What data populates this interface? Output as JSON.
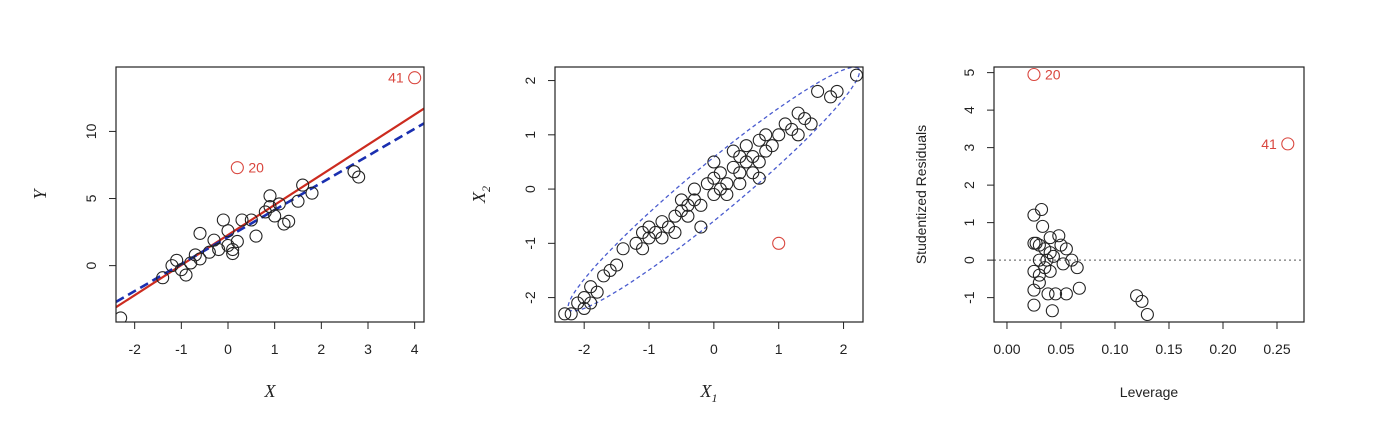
{
  "chart_data": [
    {
      "type": "scatter",
      "xlabel": "X",
      "ylabel": "Y",
      "xlim": [
        -2.4,
        4.2
      ],
      "ylim": [
        -4.2,
        14.8
      ],
      "xticks": [
        -2,
        -1,
        0,
        1,
        2,
        3,
        4
      ],
      "yticks": [
        0,
        5,
        10
      ],
      "points": [
        [
          -2.3,
          -3.9
        ],
        [
          -1.4,
          -0.9
        ],
        [
          -1.2,
          0.0
        ],
        [
          -1.1,
          0.4
        ],
        [
          -1.0,
          -0.3
        ],
        [
          -0.9,
          -0.7
        ],
        [
          -0.8,
          0.2
        ],
        [
          -0.7,
          0.8
        ],
        [
          -0.6,
          0.5
        ],
        [
          -0.6,
          2.4
        ],
        [
          -0.4,
          1.0
        ],
        [
          -0.3,
          1.9
        ],
        [
          -0.2,
          1.2
        ],
        [
          -0.1,
          3.4
        ],
        [
          0.0,
          2.6
        ],
        [
          0.0,
          1.5
        ],
        [
          0.1,
          1.2
        ],
        [
          0.1,
          0.9
        ],
        [
          0.2,
          1.8
        ],
        [
          0.3,
          3.4
        ],
        [
          0.5,
          3.4
        ],
        [
          0.6,
          2.2
        ],
        [
          0.8,
          4.0
        ],
        [
          0.9,
          5.2
        ],
        [
          0.9,
          4.4
        ],
        [
          1.0,
          3.7
        ],
        [
          1.1,
          4.6
        ],
        [
          1.2,
          3.1
        ],
        [
          1.3,
          3.3
        ],
        [
          1.5,
          4.8
        ],
        [
          1.6,
          6.0
        ],
        [
          1.8,
          5.4
        ],
        [
          2.7,
          7.0
        ],
        [
          2.8,
          6.6
        ]
      ],
      "outliers": [
        {
          "x": 0.2,
          "y": 7.3,
          "label": "20"
        },
        {
          "x": 4.0,
          "y": 14.0,
          "label": "41"
        }
      ],
      "lines": [
        {
          "type": "solid",
          "color": "#cc2b1f",
          "x": [
            -2.4,
            4.2
          ],
          "y": [
            -3.1,
            11.7
          ]
        },
        {
          "type": "dashed",
          "color": "#1a2fb0",
          "x": [
            -2.4,
            4.2
          ],
          "y": [
            -2.7,
            10.6
          ]
        }
      ]
    },
    {
      "type": "scatter",
      "xlabel": "X",
      "xlabel_sub": "1",
      "ylabel": "X",
      "ylabel_sub": "2",
      "xlim": [
        -2.45,
        2.3
      ],
      "ylim": [
        -2.45,
        2.25
      ],
      "xticks": [
        -2,
        -1,
        0,
        1,
        2
      ],
      "yticks": [
        -2,
        -1,
        0,
        1,
        2
      ],
      "points": [
        [
          -2.3,
          -2.3
        ],
        [
          -2.2,
          -2.3
        ],
        [
          -2.1,
          -2.1
        ],
        [
          -2.0,
          -2.2
        ],
        [
          -2.0,
          -2.0
        ],
        [
          -1.9,
          -2.1
        ],
        [
          -1.9,
          -1.8
        ],
        [
          -1.8,
          -1.9
        ],
        [
          -1.7,
          -1.6
        ],
        [
          -1.6,
          -1.5
        ],
        [
          -1.5,
          -1.4
        ],
        [
          -1.4,
          -1.1
        ],
        [
          -1.2,
          -1.0
        ],
        [
          -1.1,
          -0.8
        ],
        [
          -1.1,
          -1.1
        ],
        [
          -1.0,
          -0.9
        ],
        [
          -1.0,
          -0.7
        ],
        [
          -0.9,
          -0.8
        ],
        [
          -0.8,
          -0.9
        ],
        [
          -0.8,
          -0.6
        ],
        [
          -0.7,
          -0.7
        ],
        [
          -0.6,
          -0.8
        ],
        [
          -0.6,
          -0.5
        ],
        [
          -0.5,
          -0.4
        ],
        [
          -0.5,
          -0.2
        ],
        [
          -0.4,
          -0.5
        ],
        [
          -0.3,
          -0.2
        ],
        [
          -0.3,
          0.0
        ],
        [
          -0.2,
          -0.3
        ],
        [
          -0.2,
          -0.7
        ],
        [
          -0.1,
          0.1
        ],
        [
          0.0,
          0.2
        ],
        [
          0.0,
          -0.1
        ],
        [
          0.1,
          0.0
        ],
        [
          0.1,
          0.3
        ],
        [
          0.2,
          0.1
        ],
        [
          0.2,
          -0.1
        ],
        [
          0.3,
          0.4
        ],
        [
          0.3,
          0.7
        ],
        [
          0.4,
          0.3
        ],
        [
          0.4,
          0.6
        ],
        [
          0.5,
          0.5
        ],
        [
          0.5,
          0.8
        ],
        [
          0.6,
          0.3
        ],
        [
          0.6,
          0.6
        ],
        [
          0.7,
          0.9
        ],
        [
          0.7,
          0.5
        ],
        [
          0.8,
          1.0
        ],
        [
          0.8,
          0.7
        ],
        [
          0.9,
          0.8
        ],
        [
          1.0,
          1.0
        ],
        [
          1.1,
          1.2
        ],
        [
          1.2,
          1.1
        ],
        [
          1.3,
          1.4
        ],
        [
          1.3,
          1.0
        ],
        [
          1.4,
          1.3
        ],
        [
          1.5,
          1.2
        ],
        [
          1.6,
          1.8
        ],
        [
          1.8,
          1.7
        ],
        [
          1.9,
          1.8
        ],
        [
          2.2,
          2.1
        ],
        [
          0.4,
          0.1
        ],
        [
          0.0,
          0.5
        ],
        [
          -0.4,
          -0.3
        ],
        [
          0.7,
          0.2
        ]
      ],
      "outliers": [
        {
          "x": 1.0,
          "y": -1.0,
          "label": ""
        }
      ],
      "ellipse": {
        "color": "#4a5ccf",
        "center": [
          0.0,
          0.0
        ],
        "angle_deg": 45,
        "rx": 3.15,
        "ry": 0.42
      }
    },
    {
      "type": "scatter",
      "xlabel": "Leverage",
      "ylabel": "Studentized Residuals",
      "xlim": [
        -0.012,
        0.275
      ],
      "ylim": [
        -1.65,
        5.15
      ],
      "xticks": [
        0.0,
        0.05,
        0.1,
        0.15,
        0.2,
        0.25
      ],
      "xtick_labels": [
        "0.00",
        "0.05",
        "0.10",
        "0.15",
        "0.20",
        "0.25"
      ],
      "yticks": [
        -1,
        0,
        1,
        2,
        3,
        4,
        5
      ],
      "points": [
        [
          0.025,
          1.2
        ],
        [
          0.025,
          0.45
        ],
        [
          0.025,
          -0.3
        ],
        [
          0.025,
          -0.8
        ],
        [
          0.025,
          -1.2
        ],
        [
          0.03,
          0.4
        ],
        [
          0.03,
          0.0
        ],
        [
          0.03,
          -0.4
        ],
        [
          0.03,
          -0.6
        ],
        [
          0.032,
          1.35
        ],
        [
          0.033,
          0.9
        ],
        [
          0.035,
          0.3
        ],
        [
          0.035,
          -0.2
        ],
        [
          0.037,
          0.0
        ],
        [
          0.038,
          -0.9
        ],
        [
          0.04,
          0.6
        ],
        [
          0.04,
          0.2
        ],
        [
          0.04,
          -0.3
        ],
        [
          0.042,
          -1.35
        ],
        [
          0.043,
          0.1
        ],
        [
          0.045,
          -0.9
        ],
        [
          0.048,
          0.65
        ],
        [
          0.05,
          0.4
        ],
        [
          0.052,
          -0.1
        ],
        [
          0.055,
          0.3
        ],
        [
          0.055,
          -0.9
        ],
        [
          0.06,
          0.0
        ],
        [
          0.065,
          -0.2
        ],
        [
          0.067,
          -0.75
        ],
        [
          0.12,
          -0.95
        ],
        [
          0.125,
          -1.1
        ],
        [
          0.13,
          -1.45
        ],
        [
          0.027,
          0.45
        ]
      ],
      "outliers": [
        {
          "x": 0.025,
          "y": 4.95,
          "label": "20"
        },
        {
          "x": 0.26,
          "y": 3.1,
          "label": "41"
        }
      ],
      "hline": {
        "y": 0,
        "style": "dotted",
        "color": "#777777"
      }
    }
  ]
}
